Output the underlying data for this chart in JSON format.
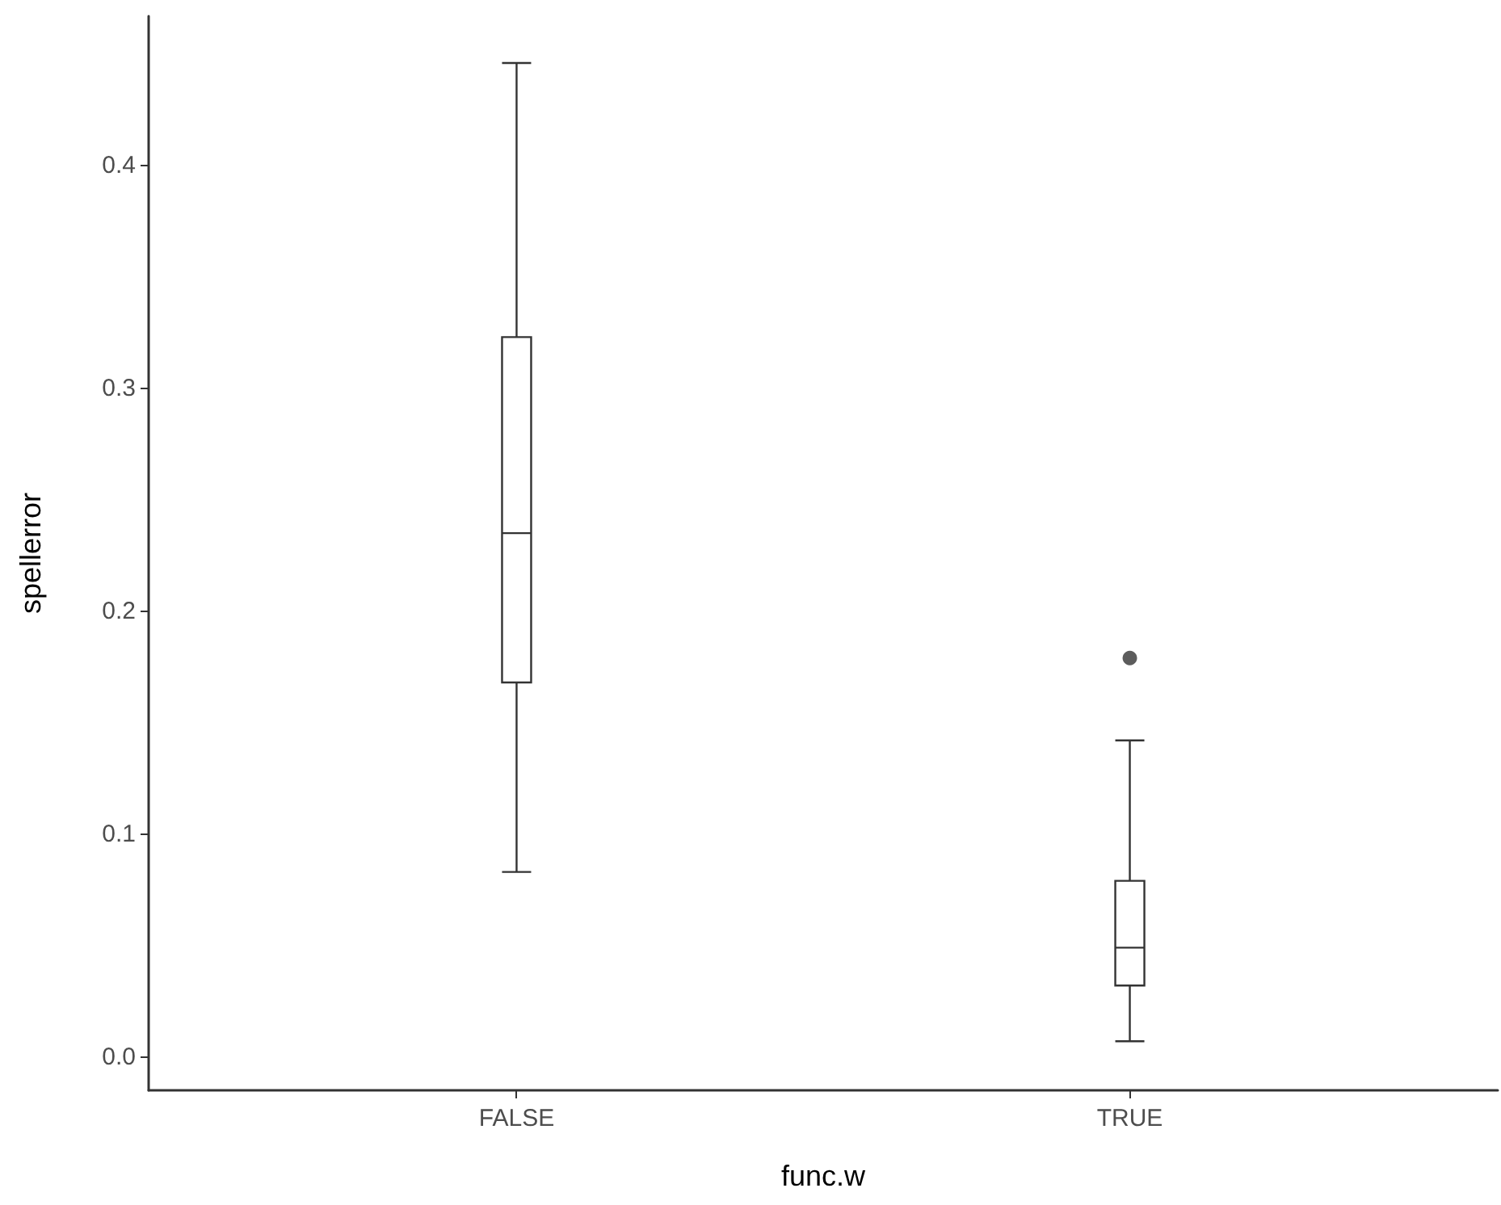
{
  "chart_data": {
    "type": "box",
    "xlabel": "func.w",
    "ylabel": "spellerror",
    "categories": [
      "FALSE",
      "TRUE"
    ],
    "ylim": [
      -0.015,
      0.467
    ],
    "yticks": [
      {
        "value": 0,
        "label": "0.0"
      },
      {
        "value": 0.1,
        "label": "0.1"
      },
      {
        "value": 0.2,
        "label": "0.2"
      },
      {
        "value": 0.3,
        "label": "0.3"
      },
      {
        "value": 0.4,
        "label": "0.4"
      }
    ],
    "grid": false,
    "boxes": [
      {
        "low": 0.083,
        "q1": 0.168,
        "median": 0.235,
        "q3": 0.323,
        "high": 0.446
      },
      {
        "low": 0.007,
        "q1": 0.032,
        "median": 0.049,
        "q3": 0.079,
        "high": 0.142,
        "outliers": [
          0.179
        ]
      }
    ]
  }
}
